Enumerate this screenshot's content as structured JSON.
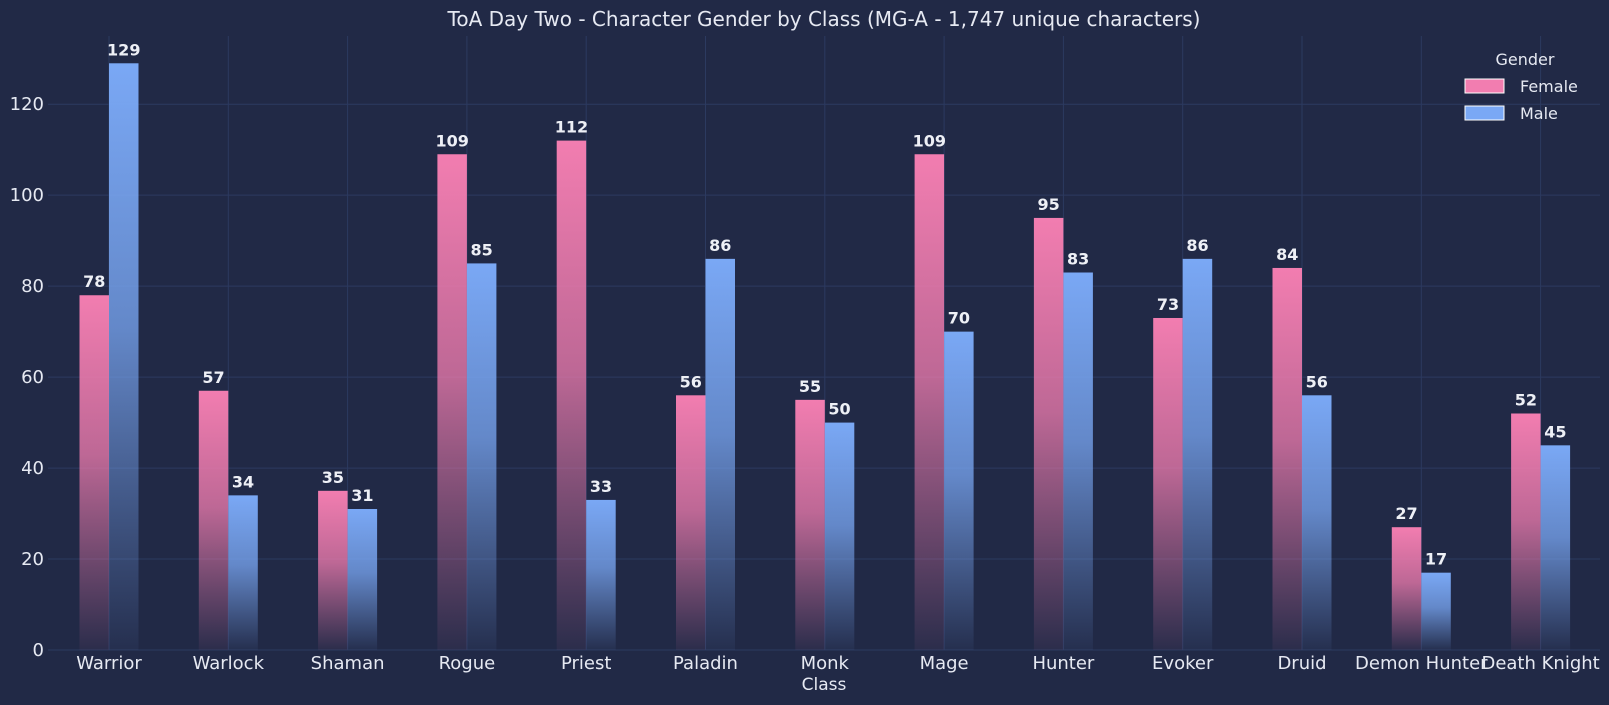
{
  "chart_data": {
    "type": "bar",
    "title": "ToA Day Two - Character Gender by Class (MG-A - 1,747 unique characters)",
    "xlabel": "Class",
    "ylabel": "",
    "categories": [
      "Warrior",
      "Warlock",
      "Shaman",
      "Rogue",
      "Priest",
      "Paladin",
      "Monk",
      "Mage",
      "Hunter",
      "Evoker",
      "Druid",
      "Demon Hunter",
      "Death Knight"
    ],
    "series": [
      {
        "name": "Female",
        "values": [
          78,
          57,
          35,
          109,
          112,
          56,
          55,
          109,
          95,
          73,
          84,
          27,
          52
        ],
        "color": "#f27db0"
      },
      {
        "name": "Male",
        "values": [
          129,
          34,
          31,
          85,
          33,
          86,
          50,
          70,
          83,
          86,
          56,
          17,
          45
        ],
        "color": "#7aa8f5"
      }
    ],
    "ylim": [
      0,
      135
    ],
    "yticks": [
      0,
      20,
      40,
      60,
      80,
      100,
      120
    ],
    "grid": true,
    "legend": {
      "title": "Gender",
      "placement": "top-right"
    }
  },
  "colors": {
    "background": "#212946",
    "grid": "#2c3a60",
    "text": "#e6e9f2"
  }
}
